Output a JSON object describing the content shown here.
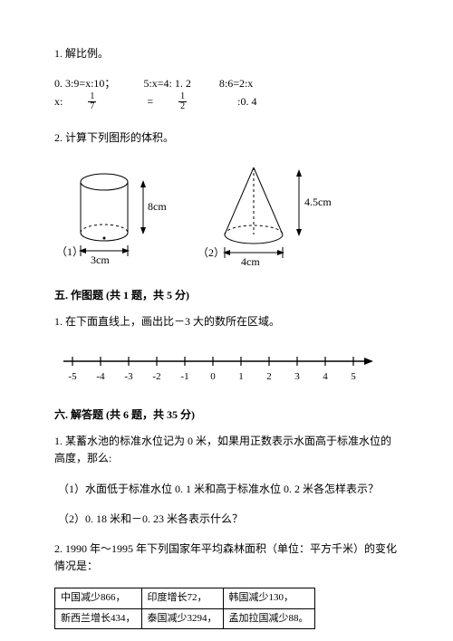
{
  "q1": {
    "title": "1. 解比例。",
    "eqs": [
      "0. 3:9=x:10；",
      "5:x=4: 1. 2",
      "8:6=2:x"
    ],
    "eq4_prefix": "x:",
    "eq4_f1_n": "1",
    "eq4_f1_d": "7",
    "eq4_mid": " = ",
    "eq4_f2_n": "1",
    "eq4_f2_d": "2",
    "eq4_suffix": ":0. 4"
  },
  "q2": {
    "title": "2. 计算下列图形的体积。",
    "fig1_h": "8cm",
    "fig1_w": "3cm",
    "fig1_label": "（1）",
    "fig2_h": "4.5cm",
    "fig2_w": "4cm",
    "fig2_label": "（2）"
  },
  "sec5": {
    "title": "五. 作图题 (共 1 题，共 5 分)",
    "q1": "1. 在下面直线上，画出比－3 大的数所在区域。",
    "ticks": [
      "-5",
      "-4",
      "-3",
      "-2",
      "-1",
      "0",
      "1",
      "2",
      "3",
      "4",
      "5"
    ]
  },
  "sec6": {
    "title": "六. 解答题 (共 6 题，共 35 分)",
    "q1_intro": "1. 某蓄水池的标准水位记为 0 米，如果用正数表示水面高于标准水位的高度，那么:",
    "q1_1": "（1）水面低于标准水位 0. 1 米和高于标准水位 0. 2 米各怎样表示？",
    "q1_2": "（2）0. 18 米和－0. 23 米各表示什么？",
    "q2_intro": "2. 1990 年～1995 年下列国家年平均森林面积（单位：平方千米）的变化情况是：",
    "table": {
      "r1": [
        "中国减少866，",
        "印度增长72，",
        "韩国减少130，"
      ],
      "r2": [
        "新西兰增长434，",
        "泰国减少3294，",
        "孟加拉国减少88。"
      ]
    }
  },
  "svg": {
    "cylinder": {
      "stroke": "#000",
      "fill": "none"
    },
    "cone": {
      "stroke": "#000",
      "fill": "none"
    },
    "numberline": {
      "stroke": "#000"
    }
  }
}
